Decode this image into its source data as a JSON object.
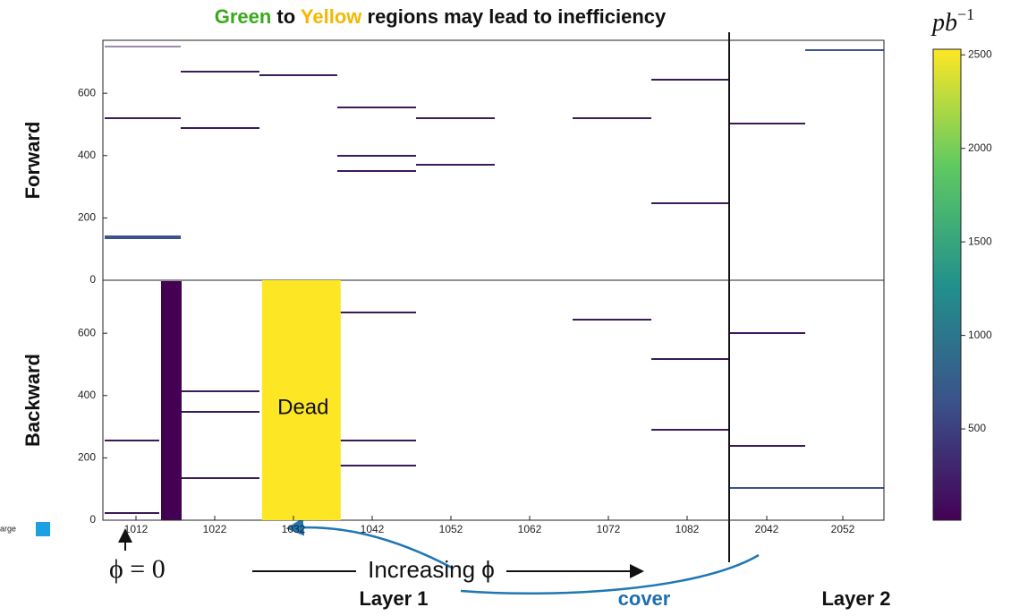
{
  "title": {
    "parts": [
      {
        "text": "Green",
        "color": "#3aaa1a"
      },
      {
        "text": " to ",
        "color": "#111111"
      },
      {
        "text": "Yellow",
        "color": "#f5b800"
      },
      {
        "text": " regions may lead to inefficiency",
        "color": "#111111"
      }
    ]
  },
  "chart_data": {
    "type": "heatmap",
    "panels": [
      {
        "label": "Forward",
        "ylim": [
          0,
          770
        ],
        "yticks": [
          0,
          200,
          400,
          600
        ]
      },
      {
        "label": "Backward",
        "ylim": [
          0,
          770
        ],
        "yticks": [
          0,
          200,
          400,
          600
        ]
      }
    ],
    "xticks": [
      1012,
      1022,
      1032,
      1042,
      1052,
      1062,
      1072,
      1082,
      2042,
      2052
    ],
    "dead_region": {
      "label": "Dead",
      "x": [
        1028,
        1038
      ],
      "color": "#fde725"
    },
    "colorbar": {
      "label": "pb",
      "exponent": "−1",
      "clim": [
        12,
        2530
      ],
      "ticks": [
        500,
        1000,
        1500,
        2000,
        2500
      ]
    },
    "annotations": {
      "phi0": "ϕ = 0",
      "increasing": "Increasing ϕ",
      "layer1": "Layer 1",
      "cover": "cover",
      "layer2": "Layer 2",
      "legend": "arge"
    }
  }
}
